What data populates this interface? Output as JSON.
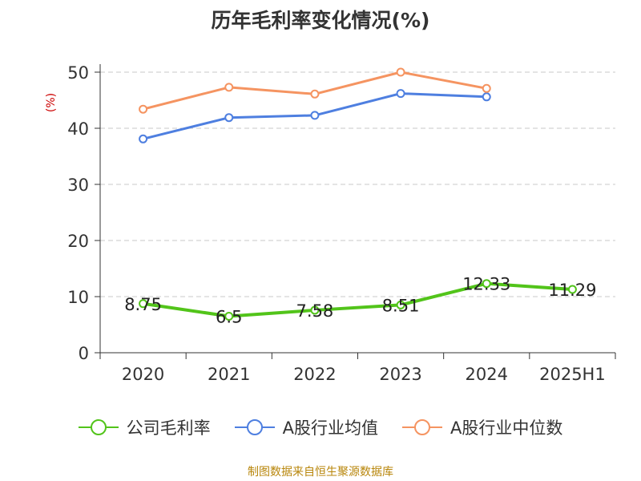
{
  "title": "历年毛利率变化情况(%)",
  "source": "制图数据来自恒生聚源数据库",
  "chart_data": {
    "type": "line",
    "title": "历年毛利率变化情况(%)",
    "ylabel": "(%)",
    "ylim": [
      0,
      50
    ],
    "yticks": [
      0,
      10,
      20,
      30,
      40,
      50
    ],
    "grid": true,
    "legend_position": "bottom",
    "categories": [
      "2020",
      "2021",
      "2022",
      "2023",
      "2024",
      "2025H1"
    ],
    "series": [
      {
        "name": "公司毛利率",
        "color": "#52c41a",
        "values": [
          8.75,
          6.5,
          7.58,
          8.51,
          12.33,
          11.29
        ],
        "labels": [
          "8.75",
          "6.5",
          "7.58",
          "8.51",
          "12.33",
          "11.29"
        ]
      },
      {
        "name": "A股行业均值",
        "color": "#4e7fe0",
        "values": [
          38.1,
          41.9,
          42.3,
          46.2,
          45.6,
          null
        ]
      },
      {
        "name": "A股行业中位数",
        "color": "#f59461",
        "values": [
          43.4,
          47.3,
          46.1,
          50.0,
          47.1,
          null
        ]
      }
    ]
  }
}
